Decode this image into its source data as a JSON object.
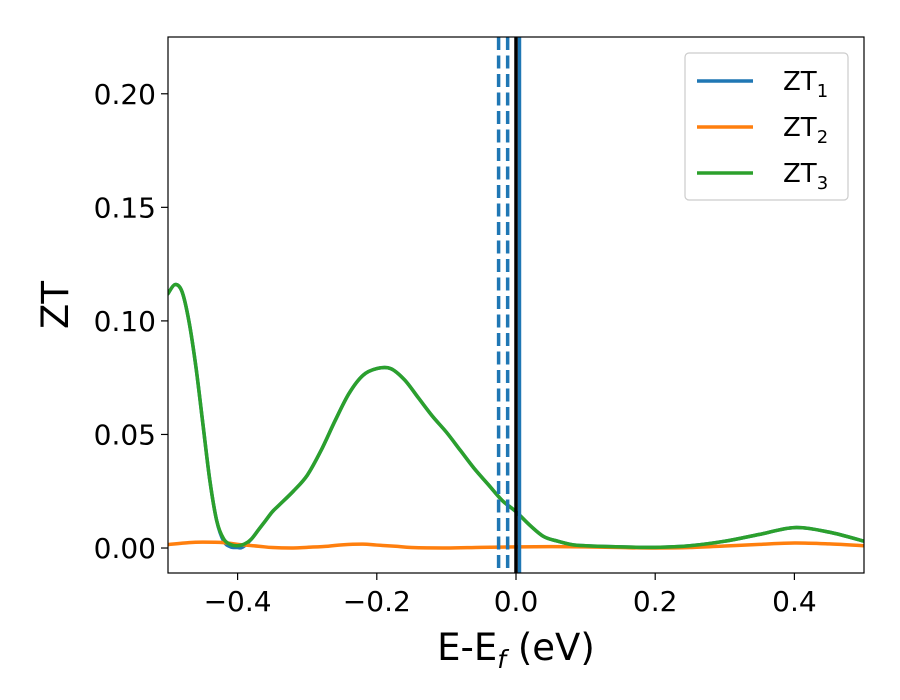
{
  "chart_data": {
    "type": "line",
    "xlabel": "E-E",
    "xlabel_sub": "f",
    "xlabel_unit": " (eV)",
    "ylabel": "ZT",
    "xlim": [
      -0.5,
      0.5
    ],
    "ylim": [
      -0.011,
      0.225
    ],
    "xticks": [
      -0.4,
      -0.2,
      0.0,
      0.2,
      0.4
    ],
    "xtick_labels": [
      "−0.4",
      "−0.2",
      "0.0",
      "0.2",
      "0.4"
    ],
    "yticks": [
      0.0,
      0.05,
      0.1,
      0.15,
      0.2
    ],
    "ytick_labels": [
      "0.00",
      "0.05",
      "0.10",
      "0.15",
      "0.20"
    ],
    "grid": false,
    "legend_position": "top-right",
    "series": [
      {
        "name": "ZT",
        "name_sub": "1",
        "color": "#1f77b4",
        "x": [
          -0.5,
          -0.49,
          -0.48,
          -0.47,
          -0.46,
          -0.45,
          -0.44,
          -0.43,
          -0.42,
          -0.41,
          -0.4,
          -0.395,
          -0.39,
          -0.38,
          -0.37,
          -0.36,
          -0.35,
          -0.34,
          -0.32,
          -0.3,
          -0.28,
          -0.26,
          -0.24,
          -0.22,
          -0.2,
          -0.18,
          -0.16,
          -0.14,
          -0.12,
          -0.1,
          -0.08,
          -0.06,
          -0.04,
          -0.02,
          0.0,
          0.02,
          0.04,
          0.06,
          0.08,
          0.1,
          0.15,
          0.2,
          0.25,
          0.3,
          0.35,
          0.4,
          0.45,
          0.5
        ],
        "y": [
          0.112,
          0.116,
          0.113,
          0.1,
          0.08,
          0.055,
          0.03,
          0.012,
          0.003,
          0.0005,
          0.0002,
          0.0001,
          0.001,
          0.004,
          0.008,
          0.012,
          0.016,
          0.019,
          0.025,
          0.032,
          0.043,
          0.056,
          0.068,
          0.076,
          0.079,
          0.079,
          0.074,
          0.066,
          0.058,
          0.051,
          0.043,
          0.035,
          0.028,
          0.021,
          0.016,
          0.01,
          0.005,
          0.003,
          0.0015,
          0.001,
          0.0005,
          0.0003,
          0.001,
          0.003,
          0.006,
          0.009,
          0.007,
          0.003
        ]
      },
      {
        "name": "ZT",
        "name_sub": "2",
        "color": "#ff7f0e",
        "x": [
          -0.5,
          -0.47,
          -0.45,
          -0.42,
          -0.4,
          -0.37,
          -0.35,
          -0.32,
          -0.3,
          -0.27,
          -0.25,
          -0.22,
          -0.2,
          -0.17,
          -0.15,
          -0.1,
          -0.05,
          0.0,
          0.05,
          0.1,
          0.15,
          0.2,
          0.25,
          0.3,
          0.35,
          0.4,
          0.45,
          0.5
        ],
        "y": [
          0.0015,
          0.0024,
          0.0026,
          0.0024,
          0.0016,
          0.0008,
          0.0002,
          0.0,
          0.0003,
          0.0008,
          0.0014,
          0.0017,
          0.0013,
          0.0007,
          0.0002,
          0.0,
          0.0003,
          0.0005,
          0.0006,
          0.0005,
          0.0002,
          0.0,
          0.0002,
          0.0009,
          0.0016,
          0.0022,
          0.0018,
          0.001
        ]
      },
      {
        "name": "ZT",
        "name_sub": "3",
        "color": "#2ca02c",
        "x": [
          -0.5,
          -0.49,
          -0.48,
          -0.47,
          -0.46,
          -0.45,
          -0.44,
          -0.43,
          -0.42,
          -0.41,
          -0.4,
          -0.39,
          -0.38,
          -0.37,
          -0.36,
          -0.35,
          -0.34,
          -0.32,
          -0.3,
          -0.28,
          -0.26,
          -0.24,
          -0.22,
          -0.2,
          -0.18,
          -0.16,
          -0.14,
          -0.12,
          -0.1,
          -0.08,
          -0.06,
          -0.04,
          -0.02,
          0.0,
          0.02,
          0.04,
          0.06,
          0.08,
          0.1,
          0.15,
          0.2,
          0.25,
          0.3,
          0.35,
          0.4,
          0.45,
          0.5
        ],
        "y": [
          0.112,
          0.116,
          0.113,
          0.1,
          0.08,
          0.055,
          0.03,
          0.012,
          0.004,
          0.0015,
          0.001,
          0.0018,
          0.004,
          0.008,
          0.012,
          0.016,
          0.019,
          0.025,
          0.032,
          0.043,
          0.056,
          0.068,
          0.076,
          0.079,
          0.079,
          0.074,
          0.066,
          0.058,
          0.051,
          0.043,
          0.035,
          0.028,
          0.021,
          0.016,
          0.01,
          0.005,
          0.003,
          0.0015,
          0.001,
          0.0005,
          0.0003,
          0.001,
          0.003,
          0.006,
          0.009,
          0.007,
          0.003
        ]
      }
    ],
    "vlines": [
      {
        "x": -0.025,
        "style": "dashed",
        "color": "#1f77b4"
      },
      {
        "x": -0.012,
        "style": "dashed",
        "color": "#1f77b4"
      },
      {
        "x": 0.005,
        "style": "solid",
        "color": "#1f77b4"
      },
      {
        "x": 0.0,
        "style": "solid",
        "color": "#000000"
      }
    ]
  }
}
